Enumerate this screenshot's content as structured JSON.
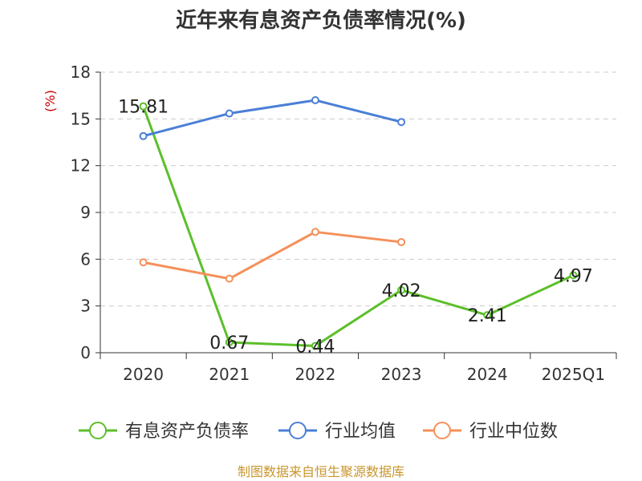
{
  "chart_data": {
    "type": "line",
    "title": "近年来有息资产负债率情况(%)",
    "ylabel": "(%)",
    "xlabel": "",
    "categories": [
      "2020",
      "2021",
      "2022",
      "2023",
      "2024",
      "2025Q1"
    ],
    "ylim": [
      0,
      18
    ],
    "yticks": [
      0,
      3,
      6,
      9,
      12,
      15,
      18
    ],
    "grid": true,
    "legend_position": "bottom",
    "series": [
      {
        "name": "有息资产负债率",
        "color": "#5cbf2a",
        "values": [
          15.81,
          0.67,
          0.44,
          4.02,
          2.41,
          4.97
        ],
        "labels": [
          "15.81",
          "0.67",
          "0.44",
          "4.02",
          "2.41",
          "4.97"
        ]
      },
      {
        "name": "行业均值",
        "color": "#4a7fd6",
        "values": [
          13.9,
          15.35,
          16.2,
          14.8,
          null,
          null
        ]
      },
      {
        "name": "行业中位数",
        "color": "#f5905a",
        "values": [
          5.8,
          4.75,
          7.75,
          7.1,
          null,
          null
        ]
      }
    ]
  },
  "footer": {
    "source": "制图数据来自恒生聚源数据库"
  }
}
